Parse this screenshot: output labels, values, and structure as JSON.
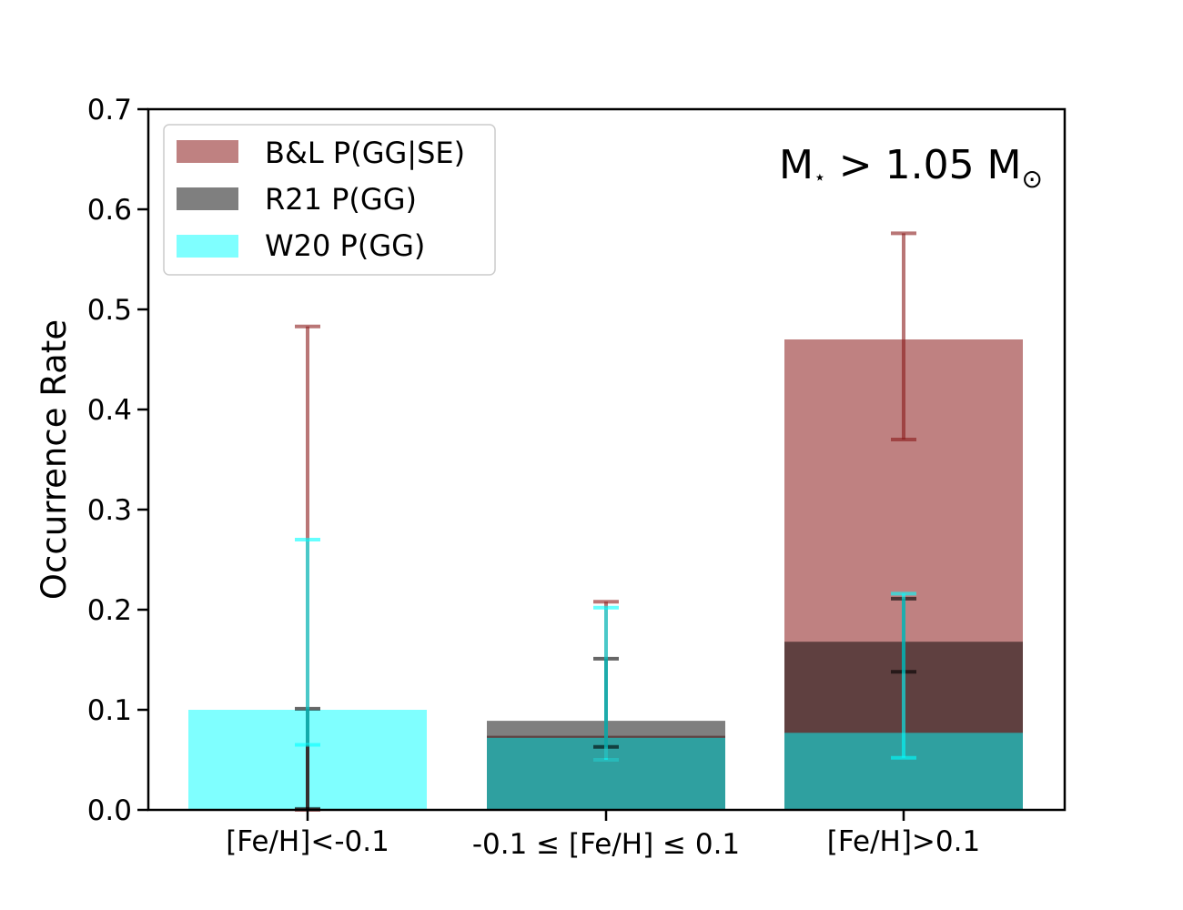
{
  "chart_data": {
    "type": "bar",
    "title": "",
    "annotation": {
      "prefix": "M",
      "star": "⋆",
      "middle": " > 1.05 M",
      "sun": "⊙"
    },
    "xlabel": "",
    "ylabel": "Occurrence Rate",
    "ylim": [
      0,
      0.7
    ],
    "yticks": [
      "0.0",
      "0.1",
      "0.2",
      "0.3",
      "0.4",
      "0.5",
      "0.6",
      "0.7"
    ],
    "yticks_values": [
      0,
      0.1,
      0.2,
      0.3,
      0.4,
      0.5,
      0.6,
      0.7
    ],
    "categories": [
      "[Fe/H]<-0.1",
      "-0.1 ≤ [Fe/H] ≤ 0.1",
      "[Fe/H]>0.1"
    ],
    "legend_position": "upper-left",
    "series": [
      {
        "name": "B&L P(GG|SE)",
        "color": "#8b1a1a",
        "opacity": 0.55,
        "values": [
          0,
          0.074,
          0.47
        ],
        "err_low": [
          0.0,
          0.05,
          0.37
        ],
        "err_high": [
          0.483,
          0.208,
          0.576
        ]
      },
      {
        "name": "R21 P(GG)",
        "color": "#000000",
        "opacity": 0.5,
        "values": [
          0,
          0.089,
          0.168
        ],
        "err_low": [
          0.001,
          0.063,
          0.138
        ],
        "err_high": [
          0.101,
          0.151,
          0.211
        ]
      },
      {
        "name": "W20 P(GG)",
        "color": "#00ffff",
        "opacity": 0.5,
        "values": [
          0.1,
          0.072,
          0.077
        ],
        "err_low": [
          0.065,
          0.05,
          0.052
        ],
        "err_high": [
          0.27,
          0.202,
          0.216
        ]
      }
    ]
  }
}
